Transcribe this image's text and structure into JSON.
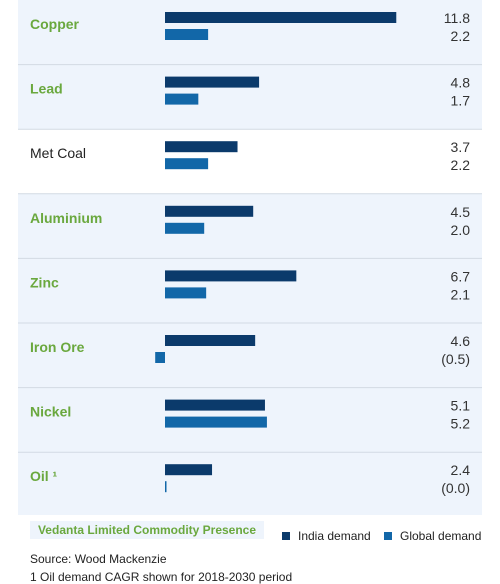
{
  "chart_data": {
    "type": "bar",
    "orientation": "horizontal",
    "categories": [
      "Copper",
      "Lead",
      "Met Coal",
      "Aluminium",
      "Zinc",
      "Iron Ore",
      "Nickel",
      "Oil ¹"
    ],
    "highlighted": [
      true,
      true,
      false,
      true,
      true,
      true,
      true,
      true
    ],
    "series": [
      {
        "name": "India demand",
        "color": "#0b3a6b",
        "values": [
          11.8,
          4.8,
          3.7,
          4.5,
          6.7,
          4.6,
          5.1,
          2.4
        ],
        "labels": [
          "11.8",
          "4.8",
          "3.7",
          "4.5",
          "6.7",
          "4.6",
          "5.1",
          "2.4"
        ]
      },
      {
        "name": "Global demand",
        "color": "#1267a8",
        "values": [
          2.2,
          1.7,
          2.2,
          2.0,
          2.1,
          -0.5,
          5.2,
          0.0
        ],
        "labels": [
          "2.2",
          "1.7",
          "2.2",
          "2.0",
          "2.1",
          "(0.5)",
          "5.2",
          "(0.0)"
        ]
      }
    ],
    "legend": "bottom",
    "highlight_color": "#6aa83e",
    "row_highlight_bg": "#eef4fc"
  },
  "legend": {
    "presence_label": "Vedanta Limited Commodity Presence",
    "india": "India demand",
    "global": "Global demand"
  },
  "footnotes": {
    "source": "Source: Wood Mackenzie",
    "note": "1 Oil demand CAGR shown for 2018-2030 period"
  }
}
